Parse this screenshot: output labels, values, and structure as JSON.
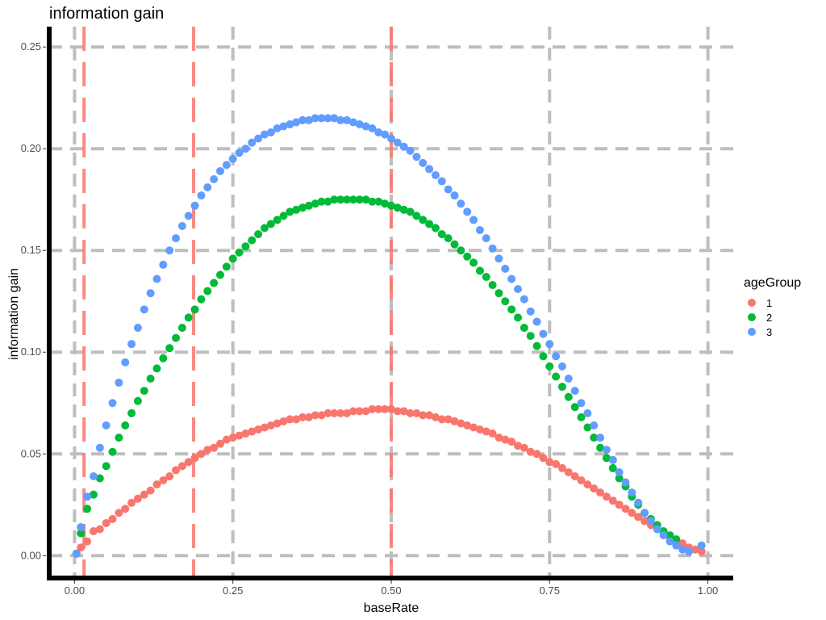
{
  "chart_data": {
    "type": "scatter",
    "title": "information gain",
    "xlabel": "baseRate",
    "ylabel": "information gain",
    "xlim": [
      -0.04,
      1.04
    ],
    "ylim": [
      -0.011,
      0.26
    ],
    "x_ticks": [
      0.0,
      0.25,
      0.5,
      0.75,
      1.0
    ],
    "x_tick_labels": [
      "0.00",
      "0.25",
      "0.50",
      "0.75",
      "1.00"
    ],
    "y_ticks": [
      0.0,
      0.05,
      0.1,
      0.15,
      0.2,
      0.25
    ],
    "y_tick_labels": [
      "0.00",
      "0.05",
      "0.10",
      "0.15",
      "0.20",
      "0.25"
    ],
    "grid": true,
    "grid_style": "dashed",
    "legend_title": "ageGroup",
    "legend_position": "right",
    "vlines": [
      {
        "x": 0.015,
        "color": "#F8766D",
        "style": "dashed"
      },
      {
        "x": 0.188,
        "color": "#F8766D",
        "style": "dashed"
      },
      {
        "x": 0.5,
        "color": "#F8766D",
        "style": "dashed"
      }
    ],
    "series": [
      {
        "name": "1",
        "color": "#F8766D",
        "points": [
          [
            0.003,
            0.001
          ],
          [
            0.01,
            0.004
          ],
          [
            0.02,
            0.007
          ],
          [
            0.03,
            0.012
          ],
          [
            0.04,
            0.013
          ],
          [
            0.05,
            0.016
          ],
          [
            0.06,
            0.018
          ],
          [
            0.07,
            0.021
          ],
          [
            0.08,
            0.023
          ],
          [
            0.09,
            0.026
          ],
          [
            0.1,
            0.028
          ],
          [
            0.11,
            0.03
          ],
          [
            0.12,
            0.032
          ],
          [
            0.13,
            0.035
          ],
          [
            0.14,
            0.037
          ],
          [
            0.15,
            0.039
          ],
          [
            0.16,
            0.042
          ],
          [
            0.17,
            0.044
          ],
          [
            0.18,
            0.046
          ],
          [
            0.19,
            0.048
          ],
          [
            0.2,
            0.05
          ],
          [
            0.21,
            0.052
          ],
          [
            0.22,
            0.053
          ],
          [
            0.23,
            0.055
          ],
          [
            0.24,
            0.057
          ],
          [
            0.25,
            0.058
          ],
          [
            0.26,
            0.059
          ],
          [
            0.27,
            0.06
          ],
          [
            0.28,
            0.061
          ],
          [
            0.29,
            0.062
          ],
          [
            0.3,
            0.063
          ],
          [
            0.31,
            0.064
          ],
          [
            0.32,
            0.065
          ],
          [
            0.33,
            0.066
          ],
          [
            0.34,
            0.067
          ],
          [
            0.35,
            0.067
          ],
          [
            0.36,
            0.068
          ],
          [
            0.37,
            0.068
          ],
          [
            0.38,
            0.069
          ],
          [
            0.39,
            0.069
          ],
          [
            0.4,
            0.07
          ],
          [
            0.41,
            0.07
          ],
          [
            0.42,
            0.07
          ],
          [
            0.43,
            0.07
          ],
          [
            0.44,
            0.071
          ],
          [
            0.45,
            0.071
          ],
          [
            0.46,
            0.071
          ],
          [
            0.47,
            0.072
          ],
          [
            0.48,
            0.072
          ],
          [
            0.49,
            0.072
          ],
          [
            0.5,
            0.072
          ],
          [
            0.51,
            0.071
          ],
          [
            0.52,
            0.071
          ],
          [
            0.53,
            0.07
          ],
          [
            0.54,
            0.07
          ],
          [
            0.55,
            0.069
          ],
          [
            0.56,
            0.069
          ],
          [
            0.57,
            0.068
          ],
          [
            0.58,
            0.067
          ],
          [
            0.59,
            0.067
          ],
          [
            0.6,
            0.066
          ],
          [
            0.61,
            0.065
          ],
          [
            0.62,
            0.064
          ],
          [
            0.63,
            0.063
          ],
          [
            0.64,
            0.062
          ],
          [
            0.65,
            0.061
          ],
          [
            0.66,
            0.06
          ],
          [
            0.67,
            0.058
          ],
          [
            0.68,
            0.057
          ],
          [
            0.69,
            0.056
          ],
          [
            0.7,
            0.054
          ],
          [
            0.71,
            0.053
          ],
          [
            0.72,
            0.051
          ],
          [
            0.73,
            0.05
          ],
          [
            0.74,
            0.048
          ],
          [
            0.75,
            0.046
          ],
          [
            0.76,
            0.045
          ],
          [
            0.77,
            0.043
          ],
          [
            0.78,
            0.041
          ],
          [
            0.79,
            0.039
          ],
          [
            0.8,
            0.037
          ],
          [
            0.81,
            0.035
          ],
          [
            0.82,
            0.033
          ],
          [
            0.83,
            0.031
          ],
          [
            0.84,
            0.029
          ],
          [
            0.85,
            0.027
          ],
          [
            0.86,
            0.025
          ],
          [
            0.87,
            0.023
          ],
          [
            0.88,
            0.021
          ],
          [
            0.89,
            0.019
          ],
          [
            0.9,
            0.017
          ],
          [
            0.91,
            0.015
          ],
          [
            0.92,
            0.013
          ],
          [
            0.93,
            0.011
          ],
          [
            0.94,
            0.009
          ],
          [
            0.95,
            0.008
          ],
          [
            0.96,
            0.006
          ],
          [
            0.97,
            0.004
          ],
          [
            0.98,
            0.003
          ],
          [
            0.99,
            0.002
          ]
        ]
      },
      {
        "name": "2",
        "color": "#00BA38",
        "points": [
          [
            0.003,
            0.001
          ],
          [
            0.01,
            0.011
          ],
          [
            0.02,
            0.023
          ],
          [
            0.03,
            0.03
          ],
          [
            0.04,
            0.038
          ],
          [
            0.05,
            0.044
          ],
          [
            0.06,
            0.051
          ],
          [
            0.07,
            0.058
          ],
          [
            0.08,
            0.064
          ],
          [
            0.09,
            0.07
          ],
          [
            0.1,
            0.076
          ],
          [
            0.11,
            0.081
          ],
          [
            0.12,
            0.087
          ],
          [
            0.13,
            0.092
          ],
          [
            0.14,
            0.097
          ],
          [
            0.15,
            0.102
          ],
          [
            0.16,
            0.107
          ],
          [
            0.17,
            0.112
          ],
          [
            0.18,
            0.117
          ],
          [
            0.19,
            0.121
          ],
          [
            0.2,
            0.126
          ],
          [
            0.21,
            0.13
          ],
          [
            0.22,
            0.134
          ],
          [
            0.23,
            0.138
          ],
          [
            0.24,
            0.142
          ],
          [
            0.25,
            0.146
          ],
          [
            0.26,
            0.149
          ],
          [
            0.27,
            0.152
          ],
          [
            0.28,
            0.155
          ],
          [
            0.29,
            0.158
          ],
          [
            0.3,
            0.161
          ],
          [
            0.31,
            0.163
          ],
          [
            0.32,
            0.165
          ],
          [
            0.33,
            0.167
          ],
          [
            0.34,
            0.169
          ],
          [
            0.35,
            0.17
          ],
          [
            0.36,
            0.171
          ],
          [
            0.37,
            0.172
          ],
          [
            0.38,
            0.173
          ],
          [
            0.39,
            0.174
          ],
          [
            0.4,
            0.174
          ],
          [
            0.41,
            0.175
          ],
          [
            0.42,
            0.175
          ],
          [
            0.43,
            0.175
          ],
          [
            0.44,
            0.175
          ],
          [
            0.45,
            0.175
          ],
          [
            0.46,
            0.175
          ],
          [
            0.47,
            0.174
          ],
          [
            0.48,
            0.174
          ],
          [
            0.49,
            0.173
          ],
          [
            0.5,
            0.172
          ],
          [
            0.51,
            0.171
          ],
          [
            0.52,
            0.17
          ],
          [
            0.53,
            0.169
          ],
          [
            0.54,
            0.167
          ],
          [
            0.55,
            0.165
          ],
          [
            0.56,
            0.163
          ],
          [
            0.57,
            0.161
          ],
          [
            0.58,
            0.158
          ],
          [
            0.59,
            0.156
          ],
          [
            0.6,
            0.153
          ],
          [
            0.61,
            0.15
          ],
          [
            0.62,
            0.147
          ],
          [
            0.63,
            0.144
          ],
          [
            0.64,
            0.14
          ],
          [
            0.65,
            0.137
          ],
          [
            0.66,
            0.133
          ],
          [
            0.67,
            0.129
          ],
          [
            0.68,
            0.125
          ],
          [
            0.69,
            0.121
          ],
          [
            0.7,
            0.117
          ],
          [
            0.71,
            0.112
          ],
          [
            0.72,
            0.108
          ],
          [
            0.73,
            0.103
          ],
          [
            0.74,
            0.098
          ],
          [
            0.75,
            0.093
          ],
          [
            0.76,
            0.088
          ],
          [
            0.77,
            0.083
          ],
          [
            0.78,
            0.078
          ],
          [
            0.79,
            0.073
          ],
          [
            0.8,
            0.068
          ],
          [
            0.81,
            0.063
          ],
          [
            0.82,
            0.058
          ],
          [
            0.83,
            0.053
          ],
          [
            0.84,
            0.048
          ],
          [
            0.85,
            0.043
          ],
          [
            0.86,
            0.038
          ],
          [
            0.87,
            0.034
          ],
          [
            0.88,
            0.029
          ],
          [
            0.89,
            0.025
          ],
          [
            0.9,
            0.021
          ],
          [
            0.91,
            0.018
          ],
          [
            0.92,
            0.015
          ],
          [
            0.93,
            0.012
          ],
          [
            0.94,
            0.01
          ],
          [
            0.95,
            0.008
          ]
        ]
      },
      {
        "name": "3",
        "color": "#619CFF",
        "points": [
          [
            0.003,
            0.001
          ],
          [
            0.01,
            0.014
          ],
          [
            0.02,
            0.029
          ],
          [
            0.03,
            0.039
          ],
          [
            0.04,
            0.053
          ],
          [
            0.05,
            0.064
          ],
          [
            0.06,
            0.075
          ],
          [
            0.07,
            0.085
          ],
          [
            0.08,
            0.095
          ],
          [
            0.09,
            0.104
          ],
          [
            0.1,
            0.112
          ],
          [
            0.11,
            0.121
          ],
          [
            0.12,
            0.129
          ],
          [
            0.13,
            0.136
          ],
          [
            0.14,
            0.143
          ],
          [
            0.15,
            0.15
          ],
          [
            0.16,
            0.156
          ],
          [
            0.17,
            0.162
          ],
          [
            0.18,
            0.167
          ],
          [
            0.19,
            0.172
          ],
          [
            0.2,
            0.177
          ],
          [
            0.21,
            0.181
          ],
          [
            0.22,
            0.185
          ],
          [
            0.23,
            0.189
          ],
          [
            0.24,
            0.192
          ],
          [
            0.25,
            0.195
          ],
          [
            0.26,
            0.198
          ],
          [
            0.27,
            0.2
          ],
          [
            0.28,
            0.203
          ],
          [
            0.29,
            0.205
          ],
          [
            0.3,
            0.207
          ],
          [
            0.31,
            0.208
          ],
          [
            0.32,
            0.21
          ],
          [
            0.33,
            0.211
          ],
          [
            0.34,
            0.212
          ],
          [
            0.35,
            0.213
          ],
          [
            0.36,
            0.214
          ],
          [
            0.37,
            0.214
          ],
          [
            0.38,
            0.215
          ],
          [
            0.39,
            0.215
          ],
          [
            0.4,
            0.215
          ],
          [
            0.41,
            0.215
          ],
          [
            0.42,
            0.214
          ],
          [
            0.43,
            0.214
          ],
          [
            0.44,
            0.213
          ],
          [
            0.45,
            0.212
          ],
          [
            0.46,
            0.211
          ],
          [
            0.47,
            0.21
          ],
          [
            0.48,
            0.208
          ],
          [
            0.49,
            0.207
          ],
          [
            0.5,
            0.205
          ],
          [
            0.51,
            0.203
          ],
          [
            0.52,
            0.201
          ],
          [
            0.53,
            0.199
          ],
          [
            0.54,
            0.196
          ],
          [
            0.55,
            0.193
          ],
          [
            0.56,
            0.19
          ],
          [
            0.57,
            0.187
          ],
          [
            0.58,
            0.184
          ],
          [
            0.59,
            0.18
          ],
          [
            0.6,
            0.177
          ],
          [
            0.61,
            0.173
          ],
          [
            0.62,
            0.169
          ],
          [
            0.63,
            0.165
          ],
          [
            0.64,
            0.16
          ],
          [
            0.65,
            0.156
          ],
          [
            0.66,
            0.151
          ],
          [
            0.67,
            0.146
          ],
          [
            0.68,
            0.141
          ],
          [
            0.69,
            0.136
          ],
          [
            0.7,
            0.131
          ],
          [
            0.71,
            0.126
          ],
          [
            0.72,
            0.12
          ],
          [
            0.73,
            0.115
          ],
          [
            0.74,
            0.109
          ],
          [
            0.75,
            0.104
          ],
          [
            0.76,
            0.098
          ],
          [
            0.77,
            0.093
          ],
          [
            0.78,
            0.087
          ],
          [
            0.79,
            0.081
          ],
          [
            0.8,
            0.075
          ],
          [
            0.81,
            0.07
          ],
          [
            0.82,
            0.064
          ],
          [
            0.83,
            0.058
          ],
          [
            0.84,
            0.052
          ],
          [
            0.85,
            0.047
          ],
          [
            0.86,
            0.041
          ],
          [
            0.87,
            0.036
          ],
          [
            0.88,
            0.031
          ],
          [
            0.89,
            0.026
          ],
          [
            0.9,
            0.021
          ],
          [
            0.91,
            0.017
          ],
          [
            0.92,
            0.013
          ],
          [
            0.93,
            0.01
          ],
          [
            0.94,
            0.007
          ],
          [
            0.95,
            0.005
          ],
          [
            0.96,
            0.003
          ],
          [
            0.97,
            0.002
          ],
          [
            0.99,
            0.005
          ]
        ]
      }
    ]
  }
}
